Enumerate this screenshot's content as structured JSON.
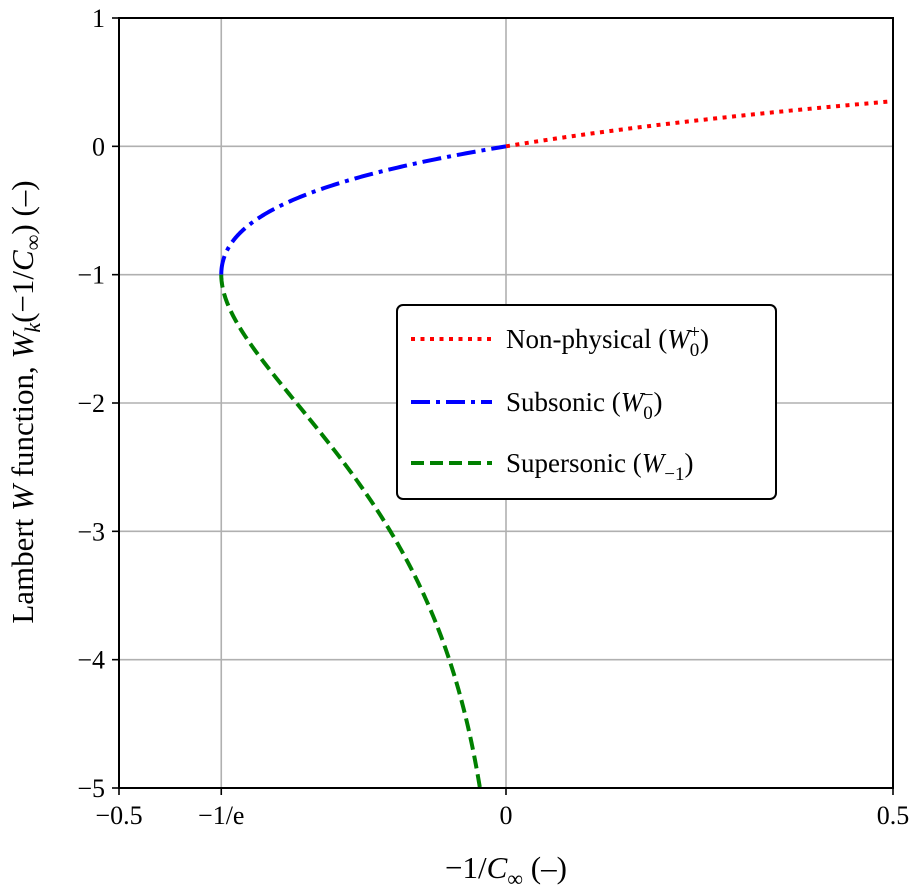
{
  "chart_data": {
    "type": "line",
    "xlabel": "−1/C∞ (–)",
    "ylabel": "Lambert W function, Wk(−1/C∞) (–)",
    "xlim": [
      -0.5,
      0.5
    ],
    "ylim": [
      -5,
      1
    ],
    "grid": true,
    "x_ticks": [
      {
        "value": -0.5,
        "label": "−0.5"
      },
      {
        "value": -0.36787944,
        "label": "−1/e"
      },
      {
        "value": 0,
        "label": "0"
      },
      {
        "value": 0.5,
        "label": "0.5"
      }
    ],
    "y_ticks": [
      {
        "value": 1,
        "label": "1"
      },
      {
        "value": 0,
        "label": "0"
      },
      {
        "value": -1,
        "label": "−1"
      },
      {
        "value": -2,
        "label": "−2"
      },
      {
        "value": -3,
        "label": "−3"
      },
      {
        "value": -4,
        "label": "−4"
      },
      {
        "value": -5,
        "label": "−5"
      }
    ],
    "legend_position": "center-right",
    "series": [
      {
        "name": "Non-physical (W0+)",
        "color": "#ff0000",
        "style": "dotted",
        "branch": "W0, x ≥ 0",
        "x": [
          0,
          0.05,
          0.1,
          0.15,
          0.2,
          0.25,
          0.3,
          0.35,
          0.4,
          0.45,
          0.5
        ],
        "y": [
          0,
          0.0477,
          0.0913,
          0.1316,
          0.1689,
          0.2039,
          0.2368,
          0.2678,
          0.2972,
          0.3251,
          0.3517
        ]
      },
      {
        "name": "Subsonic (W0−)",
        "color": "#0000ff",
        "style": "dashdot",
        "branch": "W0, −1/e ≤ x ≤ 0",
        "x": [
          -0.3679,
          -0.3668,
          -0.3595,
          -0.3476,
          -0.3293,
          -0.3033,
          -0.2681,
          -0.2222,
          -0.1646,
          -0.0904,
          0
        ],
        "y": [
          -1,
          -0.9,
          -0.8,
          -0.7,
          -0.6,
          -0.5,
          -0.4,
          -0.3,
          -0.2,
          -0.1,
          0
        ]
      },
      {
        "name": "Supersonic (W−1)",
        "color": "#008000",
        "style": "dashed",
        "branch": "W−1, −1/e ≤ x < 0",
        "x": [
          -0.3679,
          -0.3347,
          -0.2707,
          -0.2052,
          -0.1494,
          -0.1069,
          -0.0733,
          -0.0446
        ],
        "y": [
          -1,
          -1.5,
          -2,
          -2.5,
          -3,
          -3.5,
          -4,
          -5
        ]
      }
    ]
  }
}
